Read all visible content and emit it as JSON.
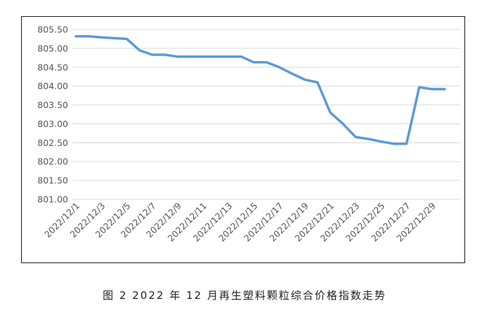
{
  "caption": "图 2  2022 年 12 月再生塑料颗粒综合价格指数走势",
  "chart_data": {
    "type": "line",
    "title": "",
    "xlabel": "",
    "ylabel": "",
    "ylim": [
      801.0,
      805.5
    ],
    "yticks": [
      "805.50",
      "805.00",
      "804.50",
      "804.00",
      "803.50",
      "803.00",
      "802.50",
      "802.00",
      "801.50",
      "801.00"
    ],
    "x_tick_labels": [
      "2022/12/1",
      "2022/12/3",
      "2022/12/5",
      "2022/12/7",
      "2022/12/9",
      "2022/12/11",
      "2022/12/13",
      "2022/12/15",
      "2022/12/17",
      "2022/12/19",
      "2022/12/21",
      "2022/12/23",
      "2022/12/25",
      "2022/12/27",
      "2022/12/29"
    ],
    "grid": true,
    "line_color": "#5b9bd5",
    "series": [
      {
        "x": [
          "2022/12/1",
          "2022/12/2",
          "2022/12/3",
          "2022/12/4",
          "2022/12/5",
          "2022/12/6",
          "2022/12/7",
          "2022/12/8",
          "2022/12/9",
          "2022/12/10",
          "2022/12/11",
          "2022/12/12",
          "2022/12/13",
          "2022/12/14",
          "2022/12/15",
          "2022/12/16",
          "2022/12/17",
          "2022/12/18",
          "2022/12/19",
          "2022/12/20",
          "2022/12/21",
          "2022/12/22",
          "2022/12/23",
          "2022/12/24",
          "2022/12/25",
          "2022/12/26",
          "2022/12/27",
          "2022/12/28",
          "2022/12/29",
          "2022/12/30"
        ],
        "values": [
          805.32,
          805.32,
          805.29,
          805.27,
          805.25,
          804.95,
          804.83,
          804.83,
          804.78,
          804.78,
          804.78,
          804.78,
          804.78,
          804.78,
          804.63,
          804.63,
          804.5,
          804.33,
          804.17,
          804.1,
          803.3,
          803.0,
          802.65,
          802.6,
          802.53,
          802.47,
          802.47,
          803.97,
          803.92,
          803.92
        ]
      }
    ]
  }
}
